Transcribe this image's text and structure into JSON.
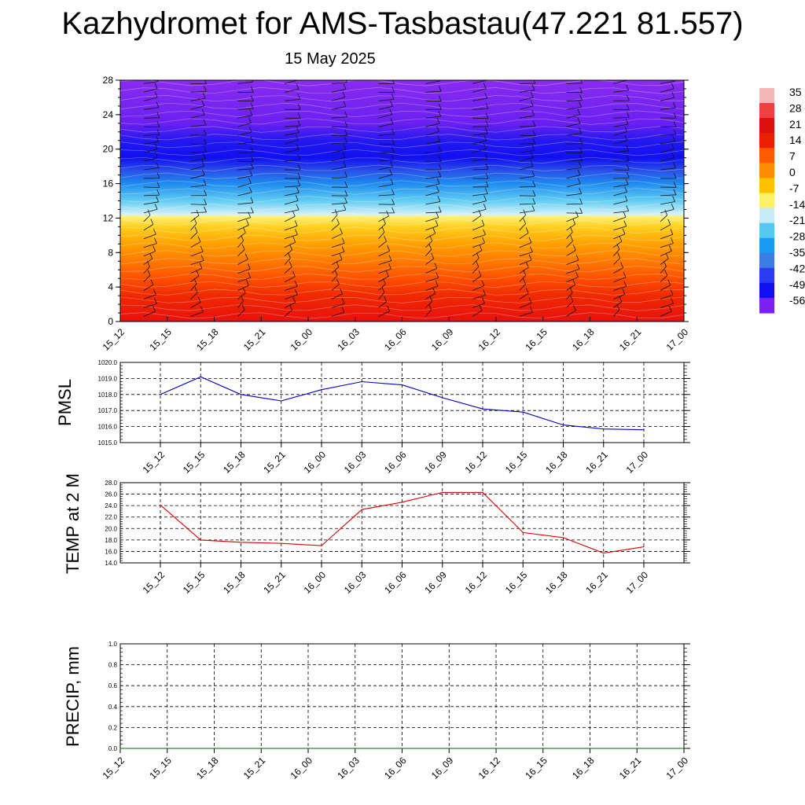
{
  "title": "Kazhydromet for AMS-Tasbastau(47.221 81.557)",
  "date": "15 May 2025",
  "time_labels": [
    "15_12",
    "15_15",
    "15_18",
    "15_21",
    "16_00",
    "16_03",
    "16_06",
    "16_09",
    "16_12",
    "16_15",
    "16_18",
    "16_21",
    "17_00"
  ],
  "colors": {
    "pmsl_line": "#0000cc",
    "temp_line": "#dd0000",
    "precip_line": "#006600",
    "grid": "#000000"
  },
  "chart_data": [
    {
      "type": "heatmap",
      "name": "temperature-wind-cross-section",
      "xlim": [
        0,
        12
      ],
      "ylabel": "",
      "ylim": [
        0,
        28
      ],
      "yticks": [
        0,
        4,
        8,
        12,
        16,
        20,
        24,
        28
      ],
      "colorbar_labels": [
        "35",
        "28",
        "21",
        "14",
        "7",
        "0",
        "-7",
        "-14",
        "-21",
        "-28",
        "-35",
        "-42",
        "-49",
        "-56"
      ],
      "colorbar_colors": [
        "#f4b8b8",
        "#ee4040",
        "#dd1010",
        "#e82000",
        "#ff5a00",
        "#ff8c00",
        "#ffc000",
        "#fff06a",
        "#c6ecf5",
        "#56c8f2",
        "#1a9af0",
        "#3a7de0",
        "#2a3cf0",
        "#1010ee",
        "#7a20f0"
      ],
      "level_stops": [
        {
          "h": 0,
          "color": "#e81010"
        },
        {
          "h": 3,
          "color": "#f02a00"
        },
        {
          "h": 5,
          "color": "#ff5000"
        },
        {
          "h": 7,
          "color": "#ff7a00"
        },
        {
          "h": 9,
          "color": "#ffa000"
        },
        {
          "h": 11,
          "color": "#ffd020"
        },
        {
          "h": 12.2,
          "color": "#fff27a"
        },
        {
          "h": 12.4,
          "color": "#d8f2fa"
        },
        {
          "h": 14,
          "color": "#62cdf2"
        },
        {
          "h": 16,
          "color": "#1e8cf0"
        },
        {
          "h": 17.5,
          "color": "#2a50e8"
        },
        {
          "h": 19,
          "color": "#1010f0"
        },
        {
          "h": 21,
          "color": "#2418f0"
        },
        {
          "h": 23,
          "color": "#6a20f0"
        },
        {
          "h": 28,
          "color": "#8a2cf0"
        }
      ]
    },
    {
      "type": "line",
      "name": "pmsl",
      "ylabel": "PMSL",
      "ylim": [
        1015.0,
        1020.0
      ],
      "yticks": [
        "1015.0",
        "1016.0",
        "1017.0",
        "1018.0",
        "1019.0",
        "1020.0"
      ],
      "x": [
        0,
        1,
        2,
        3,
        4,
        5,
        6,
        7,
        8,
        9,
        10,
        11,
        12
      ],
      "values": [
        1018.0,
        1019.1,
        1018.0,
        1017.6,
        1018.3,
        1018.8,
        1018.6,
        1017.8,
        1017.1,
        1016.9,
        1016.1,
        1015.85,
        1015.8
      ]
    },
    {
      "type": "line",
      "name": "temp",
      "ylabel": "TEMP at 2 M",
      "ylim": [
        14.0,
        28.0
      ],
      "yticks": [
        "14.0",
        "16.0",
        "18.0",
        "20.0",
        "22.0",
        "24.0",
        "26.0",
        "28.0"
      ],
      "x": [
        0,
        1,
        2,
        3,
        4,
        5,
        6,
        7,
        8,
        9,
        10,
        11,
        12
      ],
      "values": [
        24.1,
        18.0,
        17.6,
        17.4,
        17.0,
        23.3,
        24.6,
        26.3,
        26.3,
        19.3,
        18.4,
        15.7,
        16.8
      ]
    },
    {
      "type": "line",
      "name": "precip",
      "ylabel": "PRECIP, mm",
      "ylim": [
        0.0,
        1.0
      ],
      "yticks": [
        "0.0",
        "0.2",
        "0.4",
        "0.6",
        "0.8",
        "1.0"
      ],
      "x": [
        0,
        12
      ],
      "values": [
        0.0,
        0.0
      ]
    }
  ]
}
